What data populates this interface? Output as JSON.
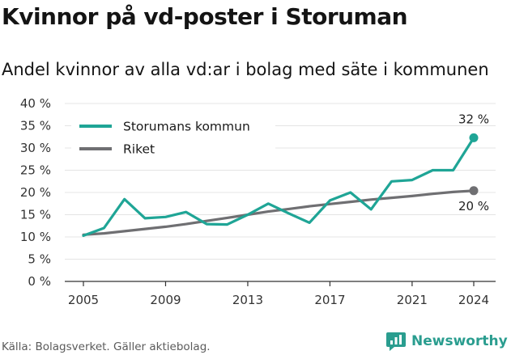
{
  "title": "Kvinnor på vd-poster i Storuman",
  "subtitle": "Andel kvinnor av alla vd:ar i bolag med säte i kommunen",
  "source": "Källa: Bolagsverket. Gäller aktiebolag.",
  "brand": "Newsworthy",
  "colors": {
    "storuman": "#1fa596",
    "riket": "#6f6f72",
    "grid": "#e4e4e4",
    "brand": "#2a9d8f"
  },
  "chart_data": {
    "type": "line",
    "x": [
      2005,
      2006,
      2007,
      2008,
      2009,
      2010,
      2011,
      2012,
      2013,
      2014,
      2015,
      2016,
      2017,
      2018,
      2019,
      2020,
      2021,
      2022,
      2023,
      2024
    ],
    "series": [
      {
        "name": "Storumans kommun",
        "color": "#1fa596",
        "values": [
          10.3,
          12.0,
          18.5,
          14.2,
          14.5,
          15.6,
          12.9,
          12.8,
          15.0,
          17.5,
          15.3,
          13.2,
          18.2,
          20.0,
          16.2,
          22.5,
          22.8,
          25.0,
          25.0,
          32.3
        ]
      },
      {
        "name": "Riket",
        "color": "#6f6f72",
        "values": [
          10.5,
          10.8,
          11.3,
          11.8,
          12.3,
          12.9,
          13.6,
          14.3,
          15.0,
          15.7,
          16.3,
          16.9,
          17.4,
          17.9,
          18.4,
          18.8,
          19.2,
          19.7,
          20.1,
          20.4
        ]
      }
    ],
    "end_labels": [
      "32 %",
      "20 %"
    ],
    "ylim": [
      0,
      40
    ],
    "yticks": [
      0,
      5,
      10,
      15,
      20,
      25,
      30,
      35,
      40
    ],
    "ytick_labels": [
      "0 %",
      "5 %",
      "10 %",
      "15 %",
      "20 %",
      "25 %",
      "30 %",
      "35 %",
      "40 %"
    ],
    "xticks": [
      2005,
      2009,
      2013,
      2017,
      2021,
      2024
    ],
    "xtick_labels": [
      "2005",
      "2009",
      "2013",
      "2017",
      "2021",
      "2024"
    ],
    "xlim": [
      2005,
      2024
    ],
    "grid": true,
    "legend": "top-left",
    "xlabel": "",
    "ylabel": ""
  }
}
